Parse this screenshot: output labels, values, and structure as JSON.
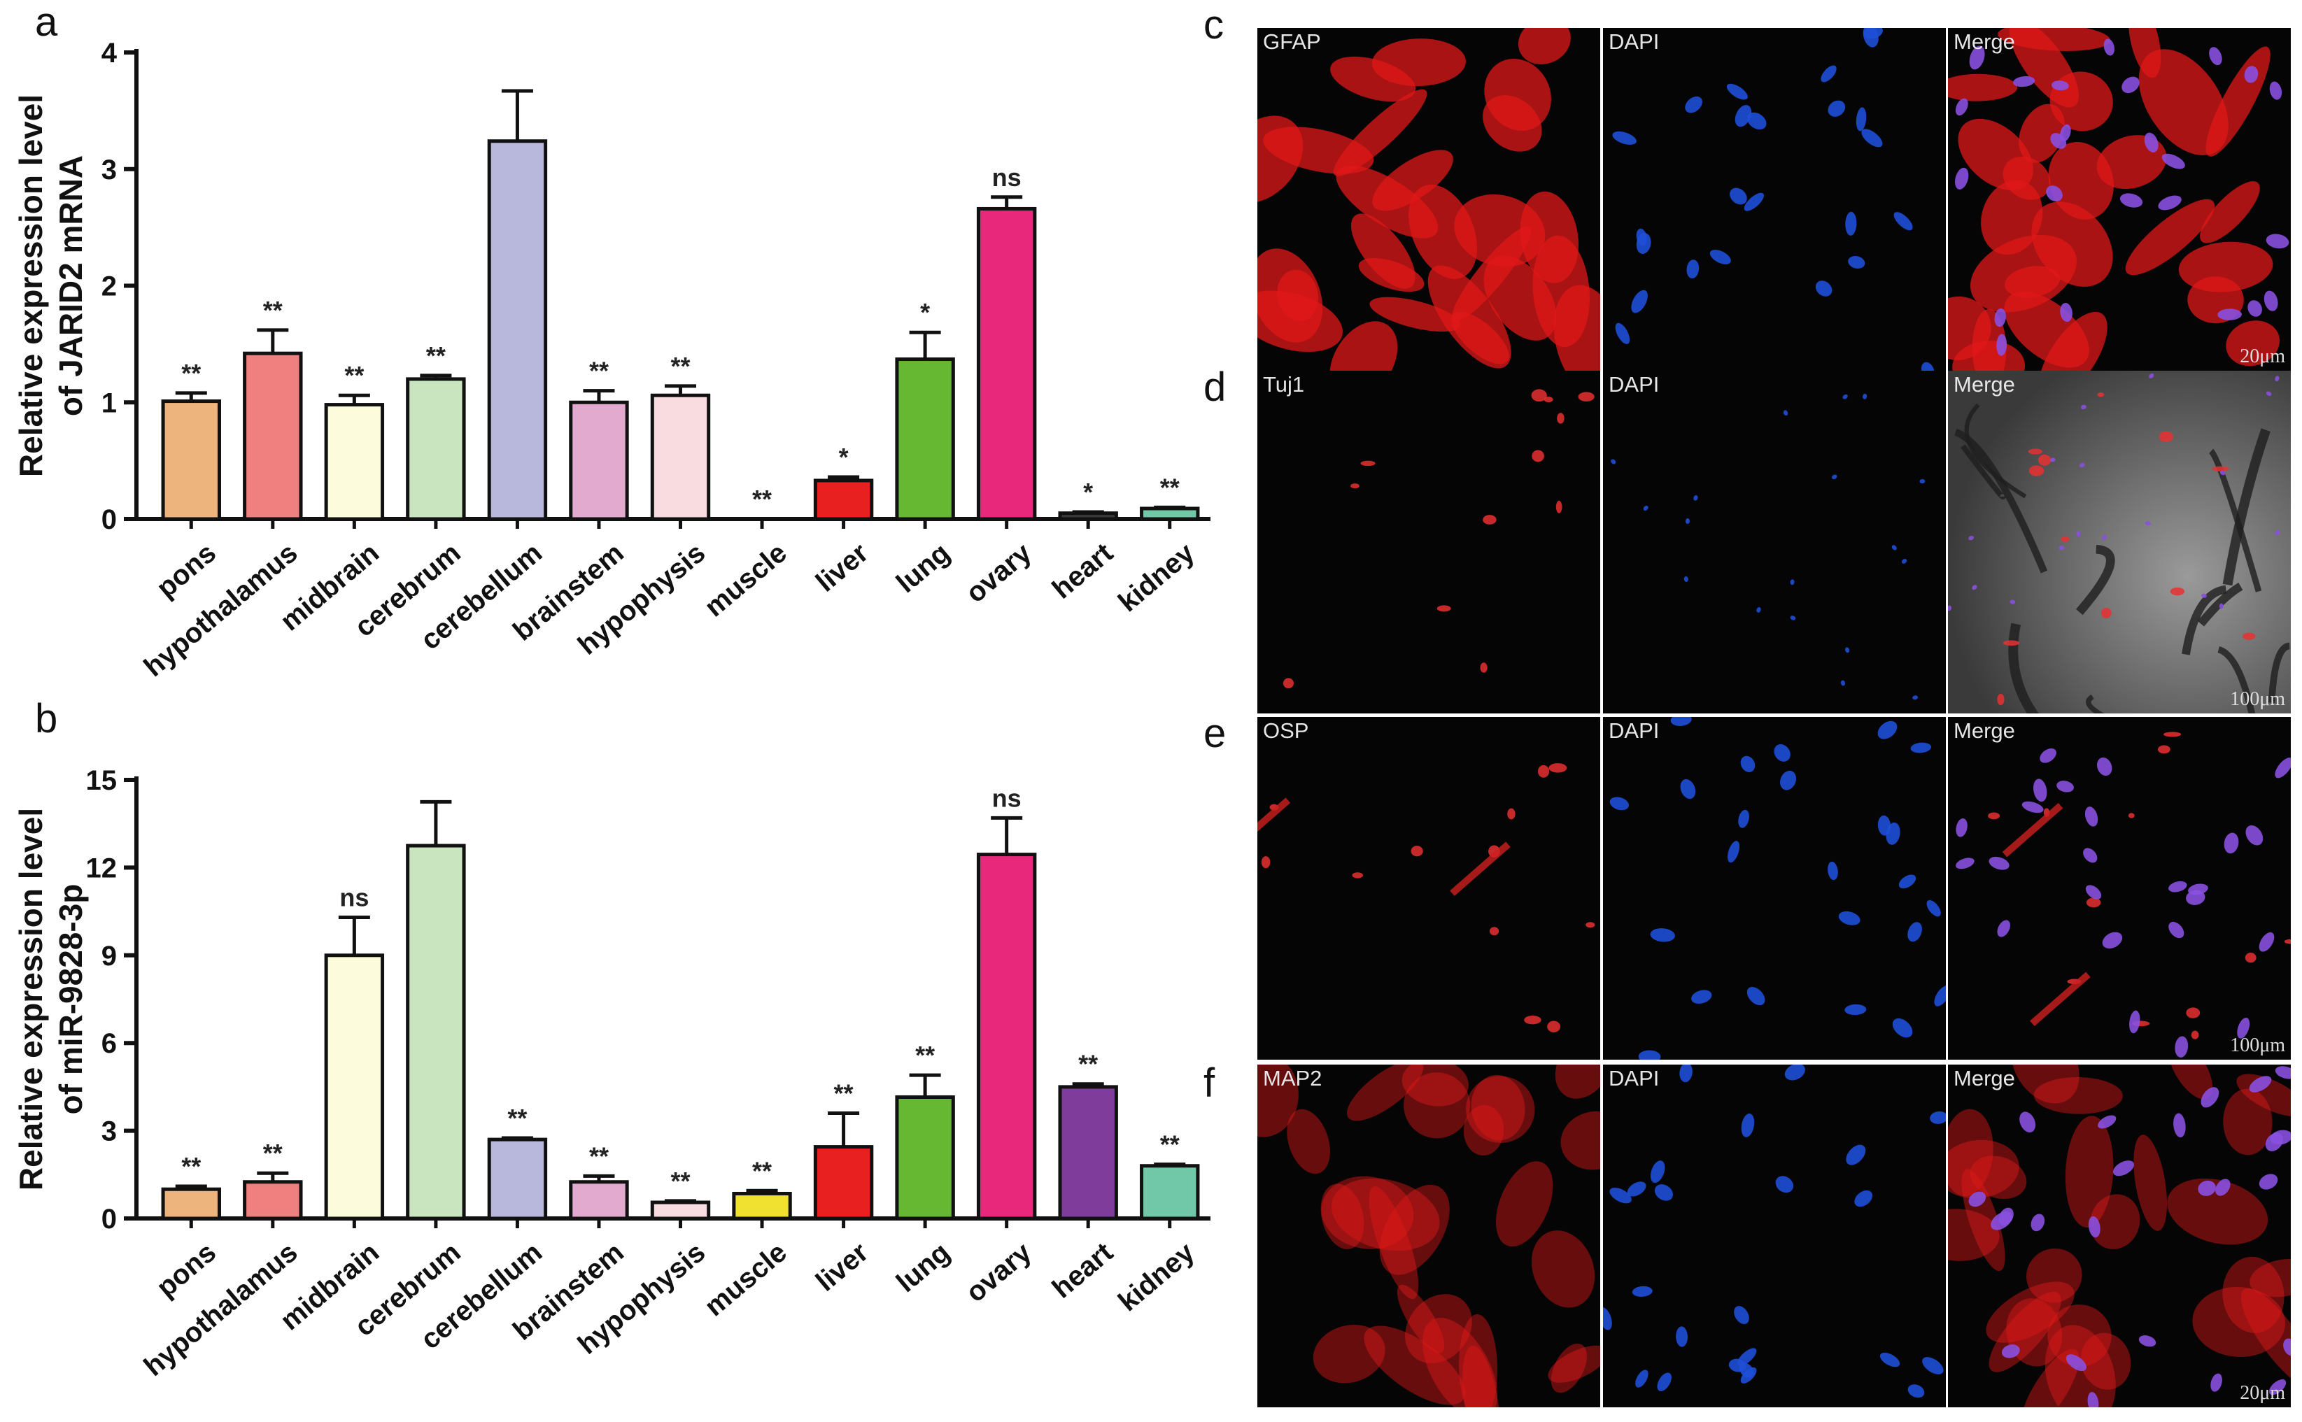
{
  "panel_labels": {
    "a": "a",
    "b": "b",
    "c": "c",
    "d": "d",
    "e": "e",
    "f": "f"
  },
  "chart_data": [
    {
      "type": "bar",
      "panel": "a",
      "categories": [
        "pons",
        "hypothalamus",
        "midbrain",
        "cerebrum",
        "cerebellum",
        "brainstem",
        "hypophysis",
        "muscle",
        "liver",
        "lung",
        "ovary",
        "heart",
        "kidney"
      ],
      "values": [
        1.01,
        1.42,
        0.98,
        1.2,
        3.24,
        1.0,
        1.06,
        0.0,
        0.33,
        1.37,
        2.66,
        0.05,
        0.09
      ],
      "errors": [
        0.07,
        0.2,
        0.08,
        0.03,
        0.43,
        0.1,
        0.08,
        0.0,
        0.03,
        0.23,
        0.1,
        0.01,
        0.01
      ],
      "significance": [
        "**",
        "**",
        "**",
        "**",
        "",
        "**",
        "**",
        "**",
        "*",
        "*",
        "ns",
        "*",
        "**"
      ],
      "colors": [
        "#edb47e",
        "#f08080",
        "#fcfcdc",
        "#c8e5c0",
        "#b8b8dc",
        "#e2aace",
        "#f9dcdf",
        "#dcdcdc",
        "#e82020",
        "#66b833",
        "#e8287a",
        "#3a3a3a",
        "#70c8a8"
      ],
      "ylabel_line1": "Relative expression level",
      "ylabel_line2": "of JARID2 mRNA",
      "ylim": [
        0,
        4
      ],
      "yticks": [
        "0",
        "1",
        "2",
        "3",
        "4"
      ]
    },
    {
      "type": "bar",
      "panel": "b",
      "categories": [
        "pons",
        "hypothalamus",
        "midbrain",
        "cerebrum",
        "cerebellum",
        "brainstem",
        "hypophysis",
        "muscle",
        "liver",
        "lung",
        "ovary",
        "heart",
        "kidney"
      ],
      "values": [
        1.0,
        1.25,
        9.0,
        12.75,
        2.7,
        1.25,
        0.55,
        0.85,
        2.45,
        4.15,
        12.45,
        4.5,
        1.8
      ],
      "errors": [
        0.1,
        0.3,
        1.3,
        1.5,
        0.05,
        0.2,
        0.05,
        0.1,
        1.15,
        0.75,
        1.25,
        0.1,
        0.05
      ],
      "significance": [
        "**",
        "**",
        "ns",
        "",
        "**",
        "**",
        "**",
        "**",
        "**",
        "**",
        "ns",
        "**",
        "**"
      ],
      "colors": [
        "#edb47e",
        "#f08080",
        "#fcfcdc",
        "#c8e5c0",
        "#b8b8dc",
        "#e2aace",
        "#f9dcdf",
        "#f0e030",
        "#e82020",
        "#66b833",
        "#e8287a",
        "#7f3c9a",
        "#70c8a8"
      ],
      "ylabel_line1": "Relative expression level",
      "ylabel_line2": "of miR-9828-3p",
      "ylim": [
        0,
        15
      ],
      "yticks": [
        "0",
        "3",
        "6",
        "9",
        "12",
        "15"
      ]
    }
  ],
  "micrographs": {
    "rows": [
      {
        "key": "c",
        "labels": [
          "GFAP",
          "DAPI",
          "Merge"
        ],
        "scale": "20μm"
      },
      {
        "key": "d",
        "labels": [
          "Tuj1",
          "DAPI",
          "Merge"
        ],
        "scale": "100μm"
      },
      {
        "key": "e",
        "labels": [
          "OSP",
          "DAPI",
          "Merge"
        ],
        "scale": "100μm"
      },
      {
        "key": "f",
        "labels": [
          "MAP2",
          "DAPI",
          "Merge"
        ],
        "scale": "20μm"
      }
    ]
  }
}
